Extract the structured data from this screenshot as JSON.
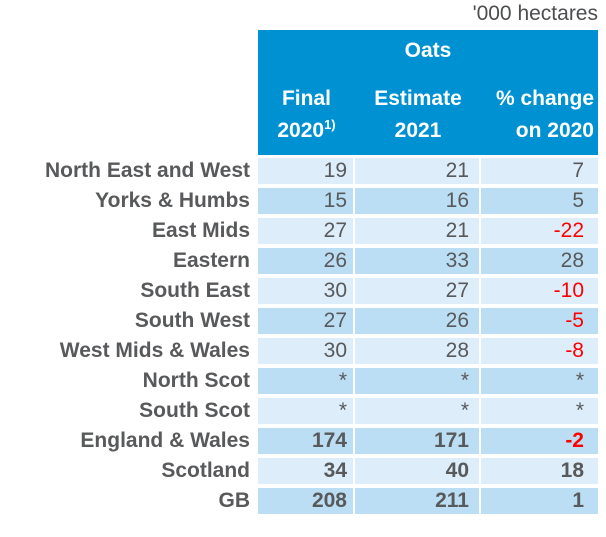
{
  "unit_label": "'000 hectares",
  "table": {
    "crop_header": "Oats",
    "columns": [
      {
        "line1": "Final",
        "line2": "2020",
        "superscript": "1)"
      },
      {
        "line1": "Estimate",
        "line2": "2021",
        "superscript": ""
      },
      {
        "line1": "% change",
        "line2": "on 2020",
        "superscript": ""
      }
    ],
    "rows": [
      {
        "label": "North East and West",
        "final_2020": "19",
        "estimate_2021": "21",
        "pct_change": "7",
        "bold": false
      },
      {
        "label": "Yorks & Humbs",
        "final_2020": "15",
        "estimate_2021": "16",
        "pct_change": "5",
        "bold": false
      },
      {
        "label": "East Mids",
        "final_2020": "27",
        "estimate_2021": "21",
        "pct_change": "-22",
        "bold": false
      },
      {
        "label": "Eastern",
        "final_2020": "26",
        "estimate_2021": "33",
        "pct_change": "28",
        "bold": false
      },
      {
        "label": "South East",
        "final_2020": "30",
        "estimate_2021": "27",
        "pct_change": "-10",
        "bold": false
      },
      {
        "label": "South West",
        "final_2020": "27",
        "estimate_2021": "26",
        "pct_change": "-5",
        "bold": false
      },
      {
        "label": "West Mids & Wales",
        "final_2020": "30",
        "estimate_2021": "28",
        "pct_change": "-8",
        "bold": false
      },
      {
        "label": "North Scot",
        "final_2020": "*",
        "estimate_2021": "*",
        "pct_change": "*",
        "bold": false
      },
      {
        "label": "South Scot",
        "final_2020": "*",
        "estimate_2021": "*",
        "pct_change": "*",
        "bold": false
      },
      {
        "label": "England & Wales",
        "final_2020": "174",
        "estimate_2021": "171",
        "pct_change": "-2",
        "bold": true
      },
      {
        "label": "Scotland",
        "final_2020": "34",
        "estimate_2021": "40",
        "pct_change": "18",
        "bold": true
      },
      {
        "label": "GB",
        "final_2020": "208",
        "estimate_2021": "211",
        "pct_change": "1",
        "bold": true
      }
    ]
  },
  "colors": {
    "header_blue": "#0091d3",
    "row_light": "#ddedf9",
    "row_dark": "#bcdef4",
    "text_gray": "#58595b",
    "negative_red": "#ff0000"
  }
}
